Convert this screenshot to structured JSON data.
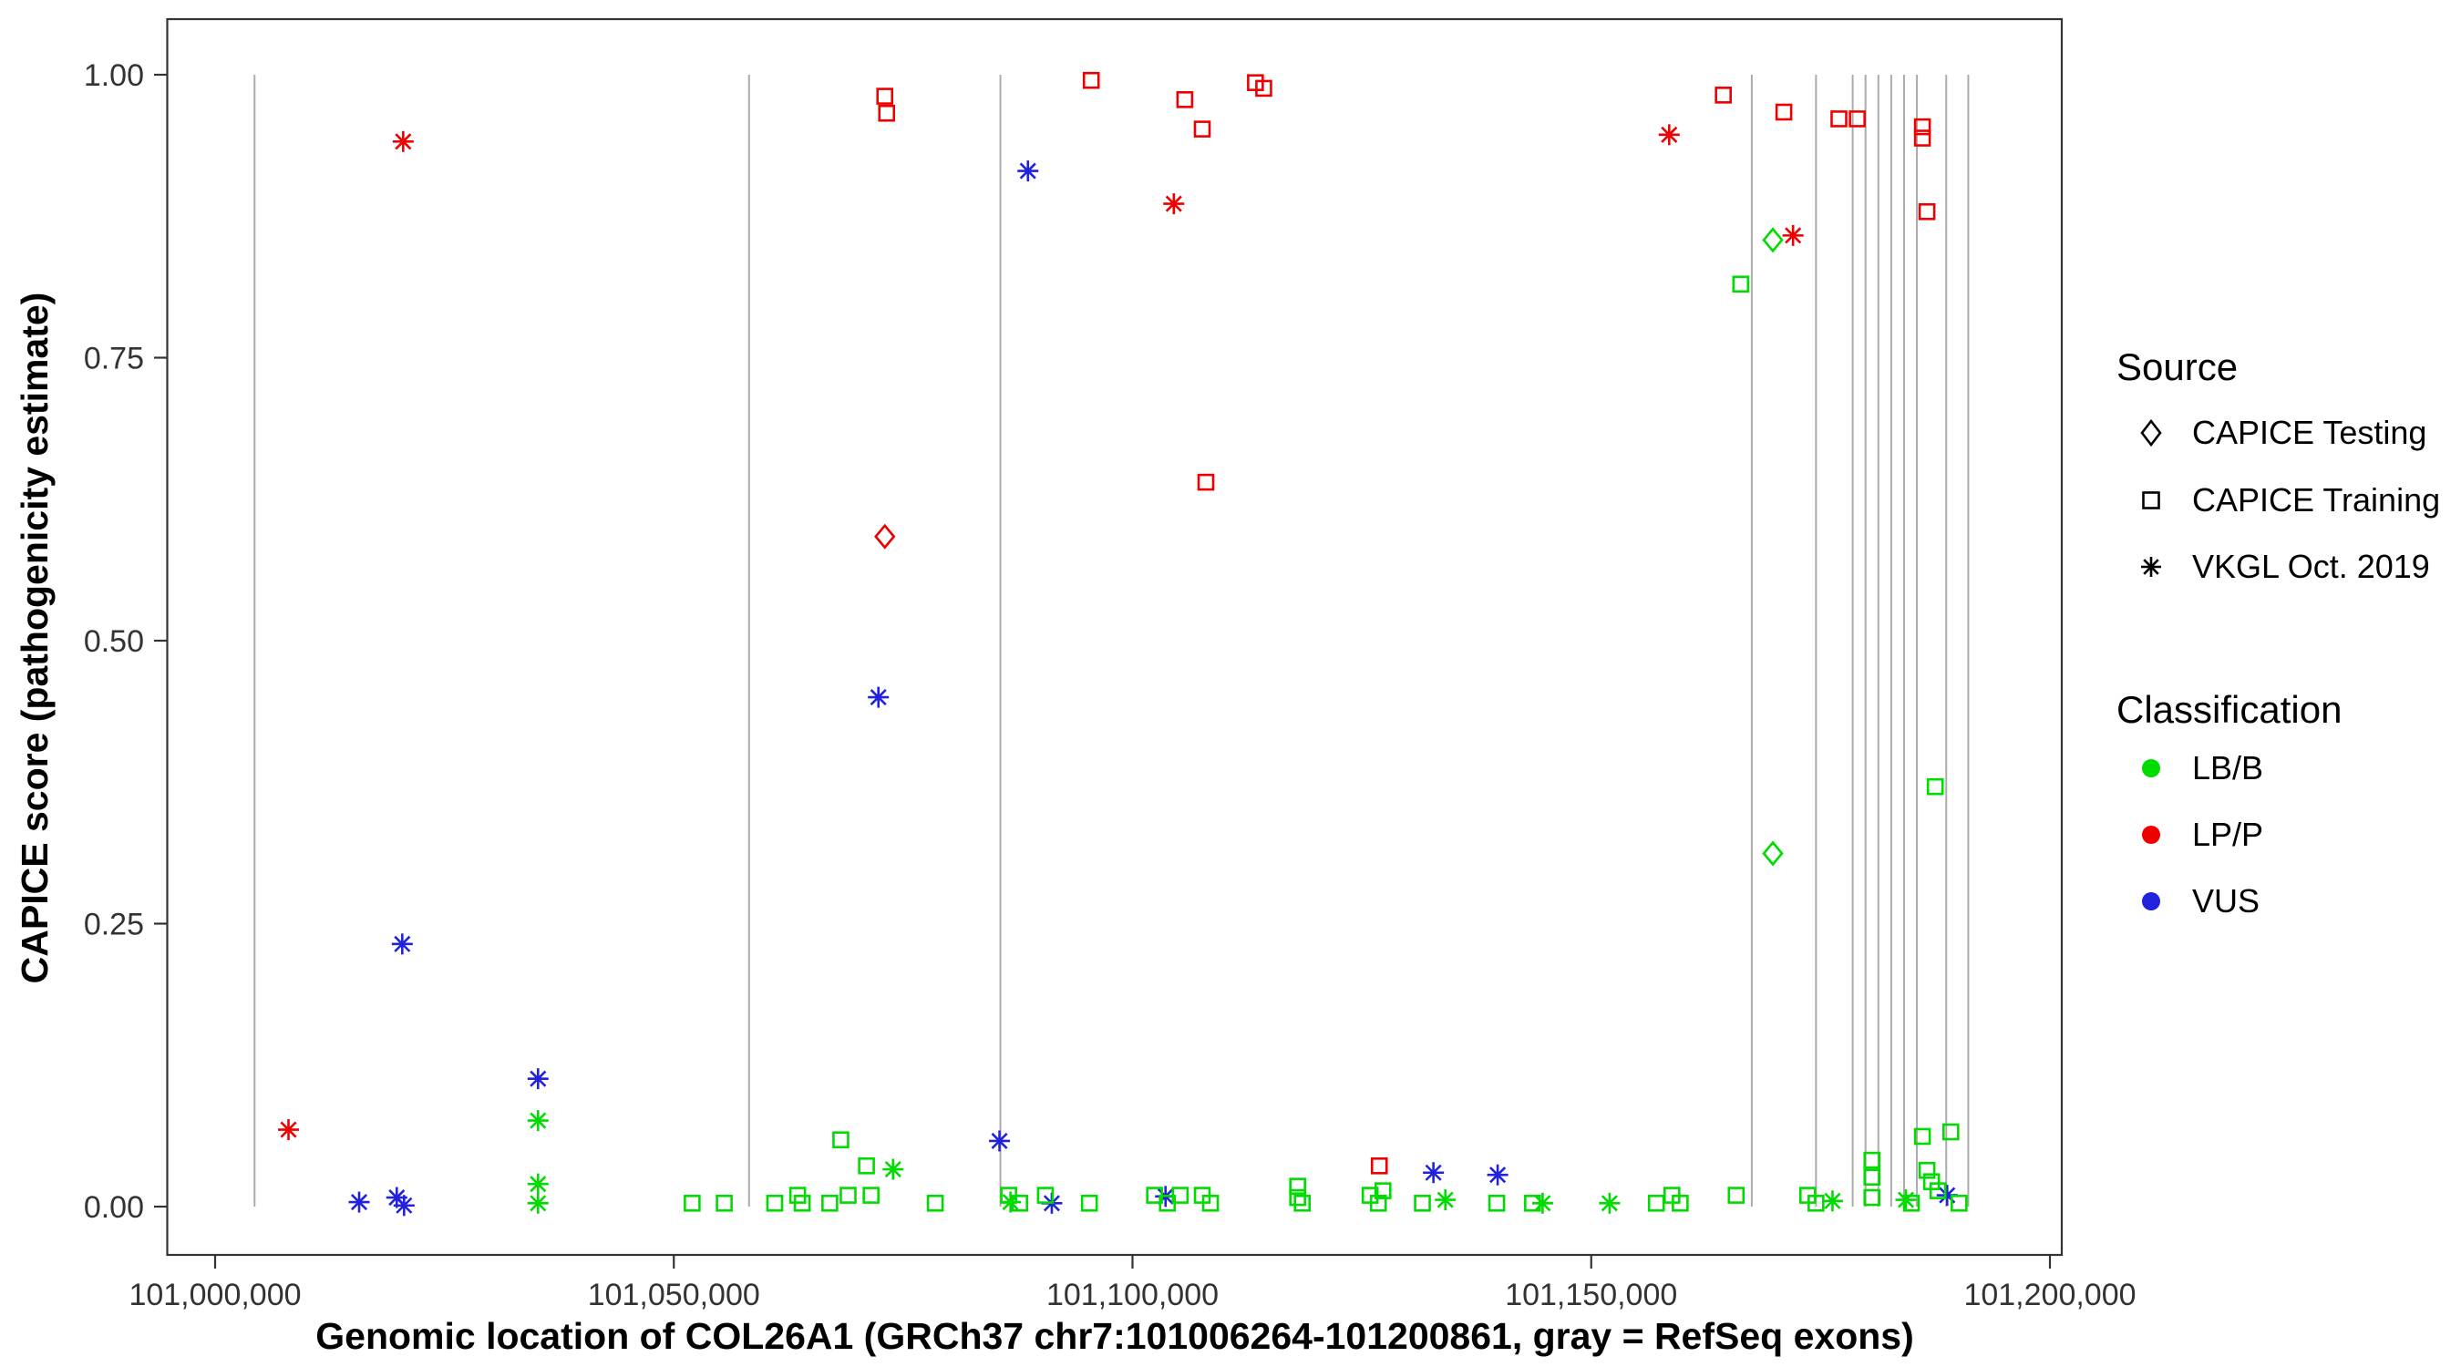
{
  "figure": {
    "x_axis": {
      "label": "Genomic location of COL26A1 (GRCh37 chr7:101006264-101200861, gray = RefSeq exons)",
      "ticks": [
        101000000,
        101050000,
        101100000,
        101150000,
        101200000
      ],
      "tick_labels": [
        "101,000,000",
        "101,050,000",
        "101,100,000",
        "101,150,000",
        "101,200,000"
      ]
    },
    "y_axis": {
      "label": "CAPICE score (pathogenicity estimate)",
      "ticks": [
        0.0,
        0.25,
        0.5,
        0.75,
        1.0
      ],
      "tick_labels": [
        "0.00",
        "0.25",
        "0.50",
        "0.75",
        "1.00"
      ]
    },
    "legend": {
      "source": {
        "title": "Source",
        "items": [
          {
            "key": "testing",
            "label": "CAPICE Testing",
            "shape": "diamond"
          },
          {
            "key": "training",
            "label": "CAPICE Training",
            "shape": "square"
          },
          {
            "key": "vkgl",
            "label": "VKGL Oct. 2019",
            "shape": "asterisk"
          }
        ]
      },
      "classification": {
        "title": "Classification",
        "items": [
          {
            "key": "LB/B",
            "label": "LB/B",
            "color": "#00DC00"
          },
          {
            "key": "LP/P",
            "label": "LP/P",
            "color": "#EE0000"
          },
          {
            "key": "VUS",
            "label": "VUS",
            "color": "#2222DC"
          }
        ]
      }
    },
    "colors": {
      "exon_line": "#ABABAB",
      "axis_text": "#333333",
      "panel_border": "#333333"
    }
  },
  "chart_data": {
    "type": "scatter",
    "x_label": "Genomic location (GRCh37 chr7)",
    "y_label": "CAPICE score",
    "x_range": [
      100990000,
      101206000
    ],
    "y_range": [
      0,
      1
    ],
    "grid": false,
    "legend_position": "right",
    "exon_lines": [
      101004300,
      101058200,
      101085600,
      101167500,
      101174500,
      101178500,
      101179900,
      101181300,
      101182700,
      101184100,
      101185500,
      101188700,
      101191100
    ],
    "points": [
      {
        "loc": 101008000,
        "score": 0.068,
        "source": "vkgl",
        "cls": "LP/P"
      },
      {
        "loc": 101020500,
        "score": 0.941,
        "source": "vkgl",
        "cls": "LP/P"
      },
      {
        "loc": 101104500,
        "score": 0.886,
        "source": "vkgl",
        "cls": "LP/P"
      },
      {
        "loc": 101158500,
        "score": 0.947,
        "source": "vkgl",
        "cls": "LP/P"
      },
      {
        "loc": 101172000,
        "score": 0.858,
        "source": "vkgl",
        "cls": "LP/P"
      },
      {
        "loc": 101073000,
        "score": 0.981,
        "source": "training",
        "cls": "LP/P"
      },
      {
        "loc": 101073200,
        "score": 0.966,
        "source": "training",
        "cls": "LP/P"
      },
      {
        "loc": 101095500,
        "score": 0.995,
        "source": "training",
        "cls": "LP/P"
      },
      {
        "loc": 101105700,
        "score": 0.978,
        "source": "training",
        "cls": "LP/P"
      },
      {
        "loc": 101107600,
        "score": 0.952,
        "source": "training",
        "cls": "LP/P"
      },
      {
        "loc": 101113400,
        "score": 0.993,
        "source": "training",
        "cls": "LP/P"
      },
      {
        "loc": 101114300,
        "score": 0.988,
        "source": "training",
        "cls": "LP/P"
      },
      {
        "loc": 101108000,
        "score": 0.64,
        "source": "training",
        "cls": "LP/P"
      },
      {
        "loc": 101164400,
        "score": 0.982,
        "source": "training",
        "cls": "LP/P"
      },
      {
        "loc": 101171000,
        "score": 0.967,
        "source": "training",
        "cls": "LP/P"
      },
      {
        "loc": 101177000,
        "score": 0.961,
        "source": "training",
        "cls": "LP/P"
      },
      {
        "loc": 101179000,
        "score": 0.961,
        "source": "training",
        "cls": "LP/P"
      },
      {
        "loc": 101186100,
        "score": 0.954,
        "source": "training",
        "cls": "LP/P"
      },
      {
        "loc": 101186100,
        "score": 0.944,
        "source": "training",
        "cls": "LP/P"
      },
      {
        "loc": 101186600,
        "score": 0.879,
        "source": "training",
        "cls": "LP/P"
      },
      {
        "loc": 101126900,
        "score": 0.036,
        "source": "training",
        "cls": "LP/P"
      },
      {
        "loc": 101073000,
        "score": 0.592,
        "source": "testing",
        "cls": "LP/P"
      },
      {
        "loc": 101169800,
        "score": 0.854,
        "source": "testing",
        "cls": "LB/B"
      },
      {
        "loc": 101169800,
        "score": 0.312,
        "source": "testing",
        "cls": "LB/B"
      },
      {
        "loc": 101020400,
        "score": 0.232,
        "source": "vkgl",
        "cls": "VUS"
      },
      {
        "loc": 101035200,
        "score": 0.113,
        "source": "vkgl",
        "cls": "VUS"
      },
      {
        "loc": 101072300,
        "score": 0.45,
        "source": "vkgl",
        "cls": "VUS"
      },
      {
        "loc": 101088600,
        "score": 0.915,
        "source": "vkgl",
        "cls": "VUS"
      },
      {
        "loc": 101085500,
        "score": 0.058,
        "source": "vkgl",
        "cls": "VUS"
      },
      {
        "loc": 101132800,
        "score": 0.03,
        "source": "vkgl",
        "cls": "VUS"
      },
      {
        "loc": 101015700,
        "score": 0.004,
        "source": "vkgl",
        "cls": "VUS"
      },
      {
        "loc": 101019800,
        "score": 0.008,
        "source": "vkgl",
        "cls": "VUS"
      },
      {
        "loc": 101020600,
        "score": 0.001,
        "source": "vkgl",
        "cls": "VUS"
      },
      {
        "loc": 101091200,
        "score": 0.003,
        "source": "vkgl",
        "cls": "VUS"
      },
      {
        "loc": 101103600,
        "score": 0.009,
        "source": "vkgl",
        "cls": "VUS"
      },
      {
        "loc": 101188800,
        "score": 0.01,
        "source": "vkgl",
        "cls": "VUS"
      },
      {
        "loc": 101139800,
        "score": 0.028,
        "source": "vkgl",
        "cls": "VUS"
      },
      {
        "loc": 101035200,
        "score": 0.076,
        "source": "vkgl",
        "cls": "LB/B"
      },
      {
        "loc": 101035200,
        "score": 0.02,
        "source": "vkgl",
        "cls": "LB/B"
      },
      {
        "loc": 101035200,
        "score": 0.003,
        "source": "vkgl",
        "cls": "LB/B"
      },
      {
        "loc": 101073900,
        "score": 0.033,
        "source": "vkgl",
        "cls": "LB/B"
      },
      {
        "loc": 101086700,
        "score": 0.004,
        "source": "vkgl",
        "cls": "LB/B"
      },
      {
        "loc": 101134100,
        "score": 0.006,
        "source": "vkgl",
        "cls": "LB/B"
      },
      {
        "loc": 101144700,
        "score": 0.003,
        "source": "vkgl",
        "cls": "LB/B"
      },
      {
        "loc": 101152000,
        "score": 0.003,
        "source": "vkgl",
        "cls": "LB/B"
      },
      {
        "loc": 101176300,
        "score": 0.005,
        "source": "vkgl",
        "cls": "LB/B"
      },
      {
        "loc": 101184300,
        "score": 0.006,
        "source": "vkgl",
        "cls": "LB/B"
      },
      {
        "loc": 101052000,
        "score": 0.003,
        "source": "training",
        "cls": "LB/B"
      },
      {
        "loc": 101055500,
        "score": 0.003,
        "source": "training",
        "cls": "LB/B"
      },
      {
        "loc": 101061000,
        "score": 0.003,
        "source": "training",
        "cls": "LB/B"
      },
      {
        "loc": 101063500,
        "score": 0.01,
        "source": "training",
        "cls": "LB/B"
      },
      {
        "loc": 101064000,
        "score": 0.003,
        "source": "training",
        "cls": "LB/B"
      },
      {
        "loc": 101067000,
        "score": 0.003,
        "source": "training",
        "cls": "LB/B"
      },
      {
        "loc": 101068200,
        "score": 0.059,
        "source": "training",
        "cls": "LB/B"
      },
      {
        "loc": 101069000,
        "score": 0.01,
        "source": "training",
        "cls": "LB/B"
      },
      {
        "loc": 101071000,
        "score": 0.036,
        "source": "training",
        "cls": "LB/B"
      },
      {
        "loc": 101071500,
        "score": 0.01,
        "source": "training",
        "cls": "LB/B"
      },
      {
        "loc": 101078500,
        "score": 0.003,
        "source": "training",
        "cls": "LB/B"
      },
      {
        "loc": 101086500,
        "score": 0.01,
        "source": "training",
        "cls": "LB/B"
      },
      {
        "loc": 101087700,
        "score": 0.003,
        "source": "training",
        "cls": "LB/B"
      },
      {
        "loc": 101090500,
        "score": 0.01,
        "source": "training",
        "cls": "LB/B"
      },
      {
        "loc": 101095300,
        "score": 0.003,
        "source": "training",
        "cls": "LB/B"
      },
      {
        "loc": 101102400,
        "score": 0.01,
        "source": "training",
        "cls": "LB/B"
      },
      {
        "loc": 101103800,
        "score": 0.003,
        "source": "training",
        "cls": "LB/B"
      },
      {
        "loc": 101105200,
        "score": 0.01,
        "source": "training",
        "cls": "LB/B"
      },
      {
        "loc": 101107600,
        "score": 0.01,
        "source": "training",
        "cls": "LB/B"
      },
      {
        "loc": 101108500,
        "score": 0.003,
        "source": "training",
        "cls": "LB/B"
      },
      {
        "loc": 101118000,
        "score": 0.018,
        "source": "training",
        "cls": "LB/B"
      },
      {
        "loc": 101118000,
        "score": 0.008,
        "source": "training",
        "cls": "LB/B"
      },
      {
        "loc": 101118500,
        "score": 0.003,
        "source": "training",
        "cls": "LB/B"
      },
      {
        "loc": 101125900,
        "score": 0.01,
        "source": "training",
        "cls": "LB/B"
      },
      {
        "loc": 101126800,
        "score": 0.003,
        "source": "training",
        "cls": "LB/B"
      },
      {
        "loc": 101127300,
        "score": 0.014,
        "source": "training",
        "cls": "LB/B"
      },
      {
        "loc": 101131600,
        "score": 0.003,
        "source": "training",
        "cls": "LB/B"
      },
      {
        "loc": 101139700,
        "score": 0.003,
        "source": "training",
        "cls": "LB/B"
      },
      {
        "loc": 101143600,
        "score": 0.003,
        "source": "training",
        "cls": "LB/B"
      },
      {
        "loc": 101157100,
        "score": 0.003,
        "source": "training",
        "cls": "LB/B"
      },
      {
        "loc": 101158800,
        "score": 0.01,
        "source": "training",
        "cls": "LB/B"
      },
      {
        "loc": 101159700,
        "score": 0.003,
        "source": "training",
        "cls": "LB/B"
      },
      {
        "loc": 101165800,
        "score": 0.01,
        "source": "training",
        "cls": "LB/B"
      },
      {
        "loc": 101166300,
        "score": 0.815,
        "source": "training",
        "cls": "LB/B"
      },
      {
        "loc": 101173600,
        "score": 0.01,
        "source": "training",
        "cls": "LB/B"
      },
      {
        "loc": 101174500,
        "score": 0.003,
        "source": "training",
        "cls": "LB/B"
      },
      {
        "loc": 101180600,
        "score": 0.041,
        "source": "training",
        "cls": "LB/B"
      },
      {
        "loc": 101180600,
        "score": 0.026,
        "source": "training",
        "cls": "LB/B"
      },
      {
        "loc": 101180600,
        "score": 0.008,
        "source": "training",
        "cls": "LB/B"
      },
      {
        "loc": 101184900,
        "score": 0.003,
        "source": "training",
        "cls": "LB/B"
      },
      {
        "loc": 101186100,
        "score": 0.062,
        "source": "training",
        "cls": "LB/B"
      },
      {
        "loc": 101186600,
        "score": 0.032,
        "source": "training",
        "cls": "LB/B"
      },
      {
        "loc": 101187100,
        "score": 0.022,
        "source": "training",
        "cls": "LB/B"
      },
      {
        "loc": 101187500,
        "score": 0.371,
        "source": "training",
        "cls": "LB/B"
      },
      {
        "loc": 101187800,
        "score": 0.014,
        "source": "training",
        "cls": "LB/B"
      },
      {
        "loc": 101189200,
        "score": 0.066,
        "source": "training",
        "cls": "LB/B"
      },
      {
        "loc": 101190100,
        "score": 0.003,
        "source": "training",
        "cls": "LB/B"
      }
    ]
  }
}
